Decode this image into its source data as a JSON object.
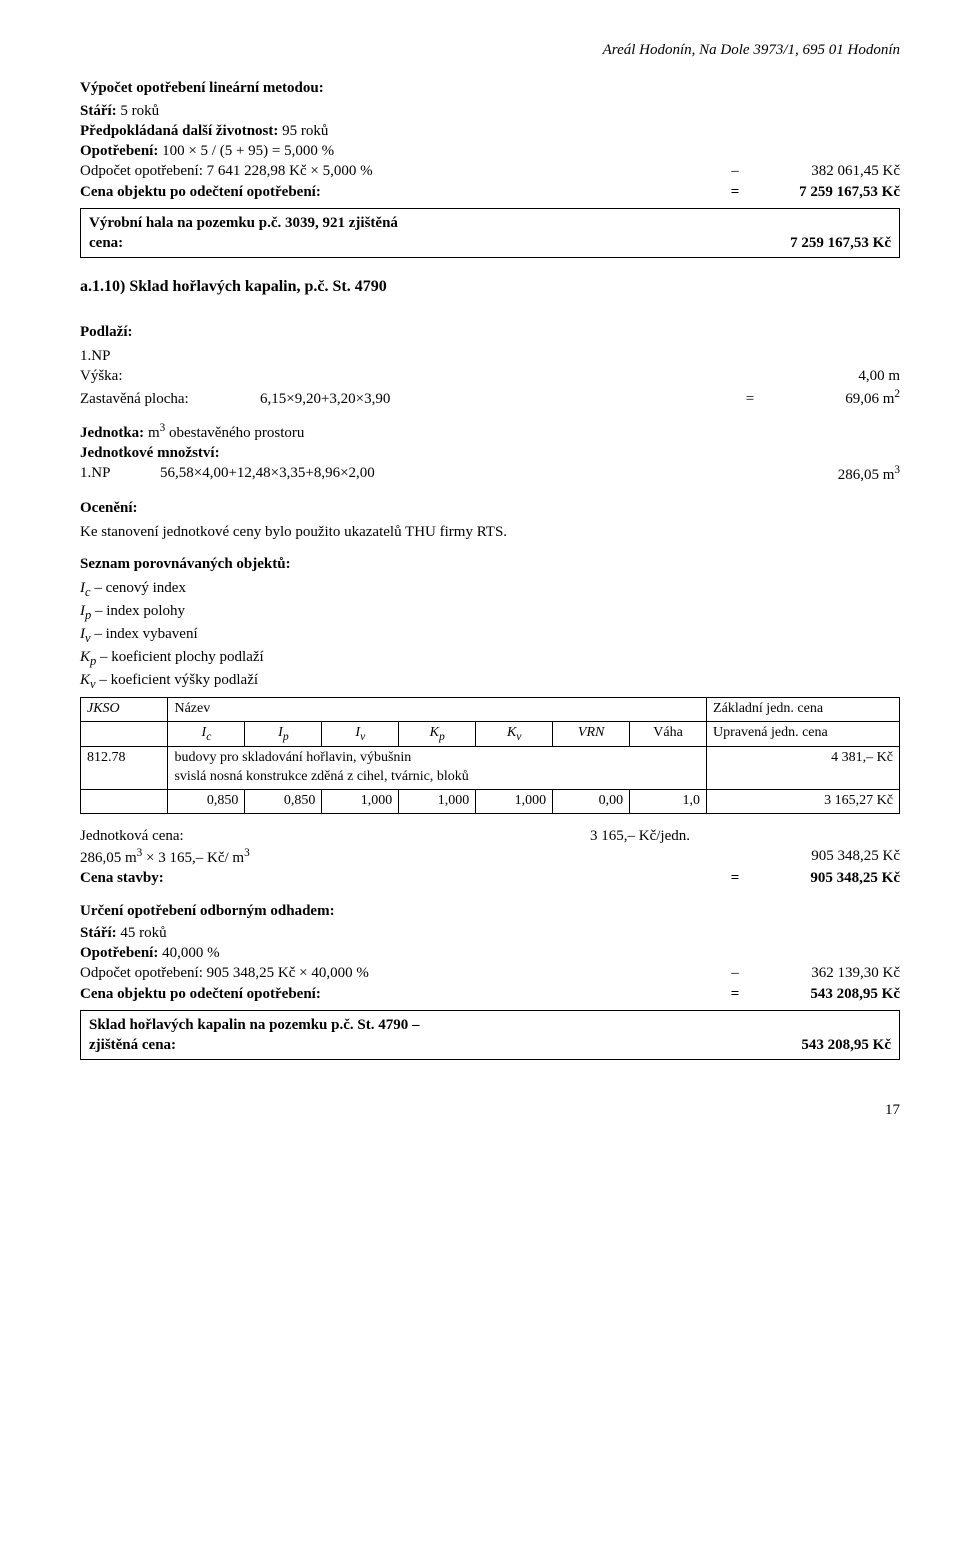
{
  "header": "Areál Hodonín, Na Dole 3973/1, 695 01 Hodonín",
  "calc1": {
    "title": "Výpočet opotřebení lineární metodou:",
    "age_label": "Stáří:",
    "age_value": "5 roků",
    "life_label": "Předpokládaná další životnost:",
    "life_value": "95 roků",
    "wear_label": "Opotřebení:",
    "wear_expr": "100 × 5 / (5 + 95) = 5,000 %",
    "deduction_label": "Odpočet opotřebení: 7 641 228,98 Kč × 5,000 %",
    "deduction_sign": "–",
    "deduction_value": "382 061,45 Kč",
    "result_label": "Cena objektu po odečtení opotřebení:",
    "result_sign": "=",
    "result_value": "7 259 167,53 Kč"
  },
  "box1": {
    "label1": "Výrobní hala na pozemku p.č. 3039, 921 zjištěná",
    "label2": "cena:",
    "value": "7 259 167,53 Kč"
  },
  "section_a110": "a.1.10)  Sklad hořlavých kapalin, p.č. St. 4790",
  "podlazi": {
    "title": "Podlaží:",
    "np": "1.NP",
    "vyska_label": "Výška:",
    "vyska_value": "4,00 m",
    "zast_label": "Zastavěná plocha:",
    "zast_expr": "6,15×9,20+3,20×3,90",
    "zast_eq": "=",
    "zast_value": "69,06 m²"
  },
  "jednotka": {
    "line1": "Jednotka: m³ obestavěného prostoru",
    "line2": "Jednotkové množství:",
    "np": "1.NP",
    "expr": "56,58×4,00+12,48×3,35+8,96×2,00",
    "value": "286,05 m³"
  },
  "oceneni": {
    "title": "Ocenění:",
    "text": "Ke stanovení jednotkové ceny bylo použito ukazatelů THU firmy RTS."
  },
  "seznam": {
    "title": "Seznam porovnávaných objektů:",
    "legend": [
      {
        "sym": "I",
        "sub": "c",
        "desc": " – cenový index"
      },
      {
        "sym": "I",
        "sub": "p",
        "desc": " – index polohy"
      },
      {
        "sym": "I",
        "sub": "v",
        "desc": " – index vybavení"
      },
      {
        "sym": "K",
        "sub": "p",
        "desc": " – koeficient plochy podlaží"
      },
      {
        "sym": "K",
        "sub": "v",
        "desc": " – koeficient výšky podlaží"
      }
    ]
  },
  "table": {
    "headers": {
      "jkso": "JKSO",
      "nazev": "Název",
      "zakladni": "Základní jedn. cena",
      "ic": "Iₑ",
      "ip": "Iₚ",
      "iv": "Iᵥ",
      "kp": "Kₚ",
      "kv": "Kᵥ",
      "vrn": "VRN",
      "vaha": "Váha",
      "upravena": "Upravená jedn. cena"
    },
    "row_code": "812.78",
    "row_name": "budovy pro skladování hořlavin, výbušnin",
    "row_name2": "svislá nosná konstrukce zděná z cihel, tvárnic, bloků",
    "row_price": "4 381,–  Kč",
    "vals": [
      "0,850",
      "0,850",
      "1,000",
      "1,000",
      "1,000",
      "0,00",
      "1,0"
    ],
    "row_result": "3 165,27 Kč"
  },
  "jednotkova": {
    "label": "Jednotková cena:",
    "value": "3 165,–  Kč/jedn.",
    "calc_label": "286,05 m³ × 3 165,–  Kč/ m³",
    "calc_value": "905 348,25 Kč",
    "stavba_label": "Cena stavby:",
    "stavba_sign": "=",
    "stavba_value": "905 348,25 Kč"
  },
  "urceni": {
    "title": "Určení opotřebení odborným odhadem:",
    "age_label": "Stáří:",
    "age_value": "45 roků",
    "wear_label": "Opotřebení:",
    "wear_value": "40,000 %",
    "deduction_label": "Odpočet opotřebení: 905 348,25 Kč × 40,000 %",
    "deduction_sign": "–",
    "deduction_value": "362 139,30 Kč",
    "result_label": "Cena objektu po odečtení opotřebení:",
    "result_sign": "=",
    "result_value": "543 208,95 Kč"
  },
  "box2": {
    "line1": "Sklad hořlavých kapalin na pozemku p.č. St. 4790 –",
    "line2": "zjištěná cena:",
    "value": "543 208,95 Kč"
  },
  "page": "17"
}
